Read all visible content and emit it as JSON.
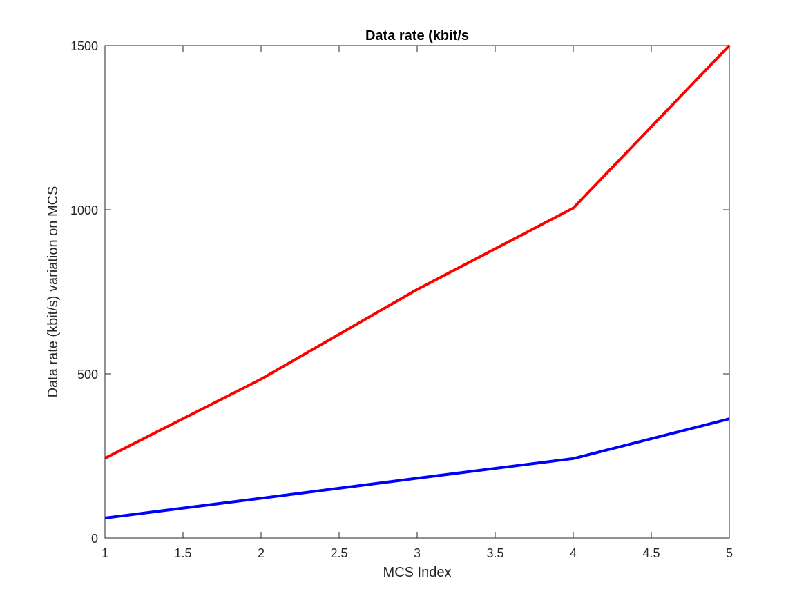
{
  "chart_data": {
    "type": "line",
    "title": "Data rate (kbit/s",
    "xlabel": "MCS Index",
    "ylabel": "Data rate (kbit/s) variation on MCS",
    "xlim": [
      1,
      5
    ],
    "ylim": [
      0,
      1500
    ],
    "xticks": [
      1,
      1.5,
      2,
      2.5,
      3,
      3.5,
      4,
      4.5,
      5
    ],
    "xtick_labels": [
      "1",
      "1.5",
      "2",
      "2.5",
      "3",
      "3.5",
      "4",
      "4.5",
      "5"
    ],
    "yticks": [
      0,
      500,
      1000,
      1500
    ],
    "ytick_labels": [
      "0",
      "500",
      "1000",
      "1500"
    ],
    "grid": false,
    "legend": null,
    "x": [
      1,
      2,
      3,
      4,
      5
    ],
    "series": [
      {
        "color": "#ff0000",
        "values": [
          243,
          484,
          757,
          1005,
          1500
        ]
      },
      {
        "color": "#0000ff",
        "values": [
          61,
          121,
          182,
          242,
          363
        ]
      }
    ]
  }
}
